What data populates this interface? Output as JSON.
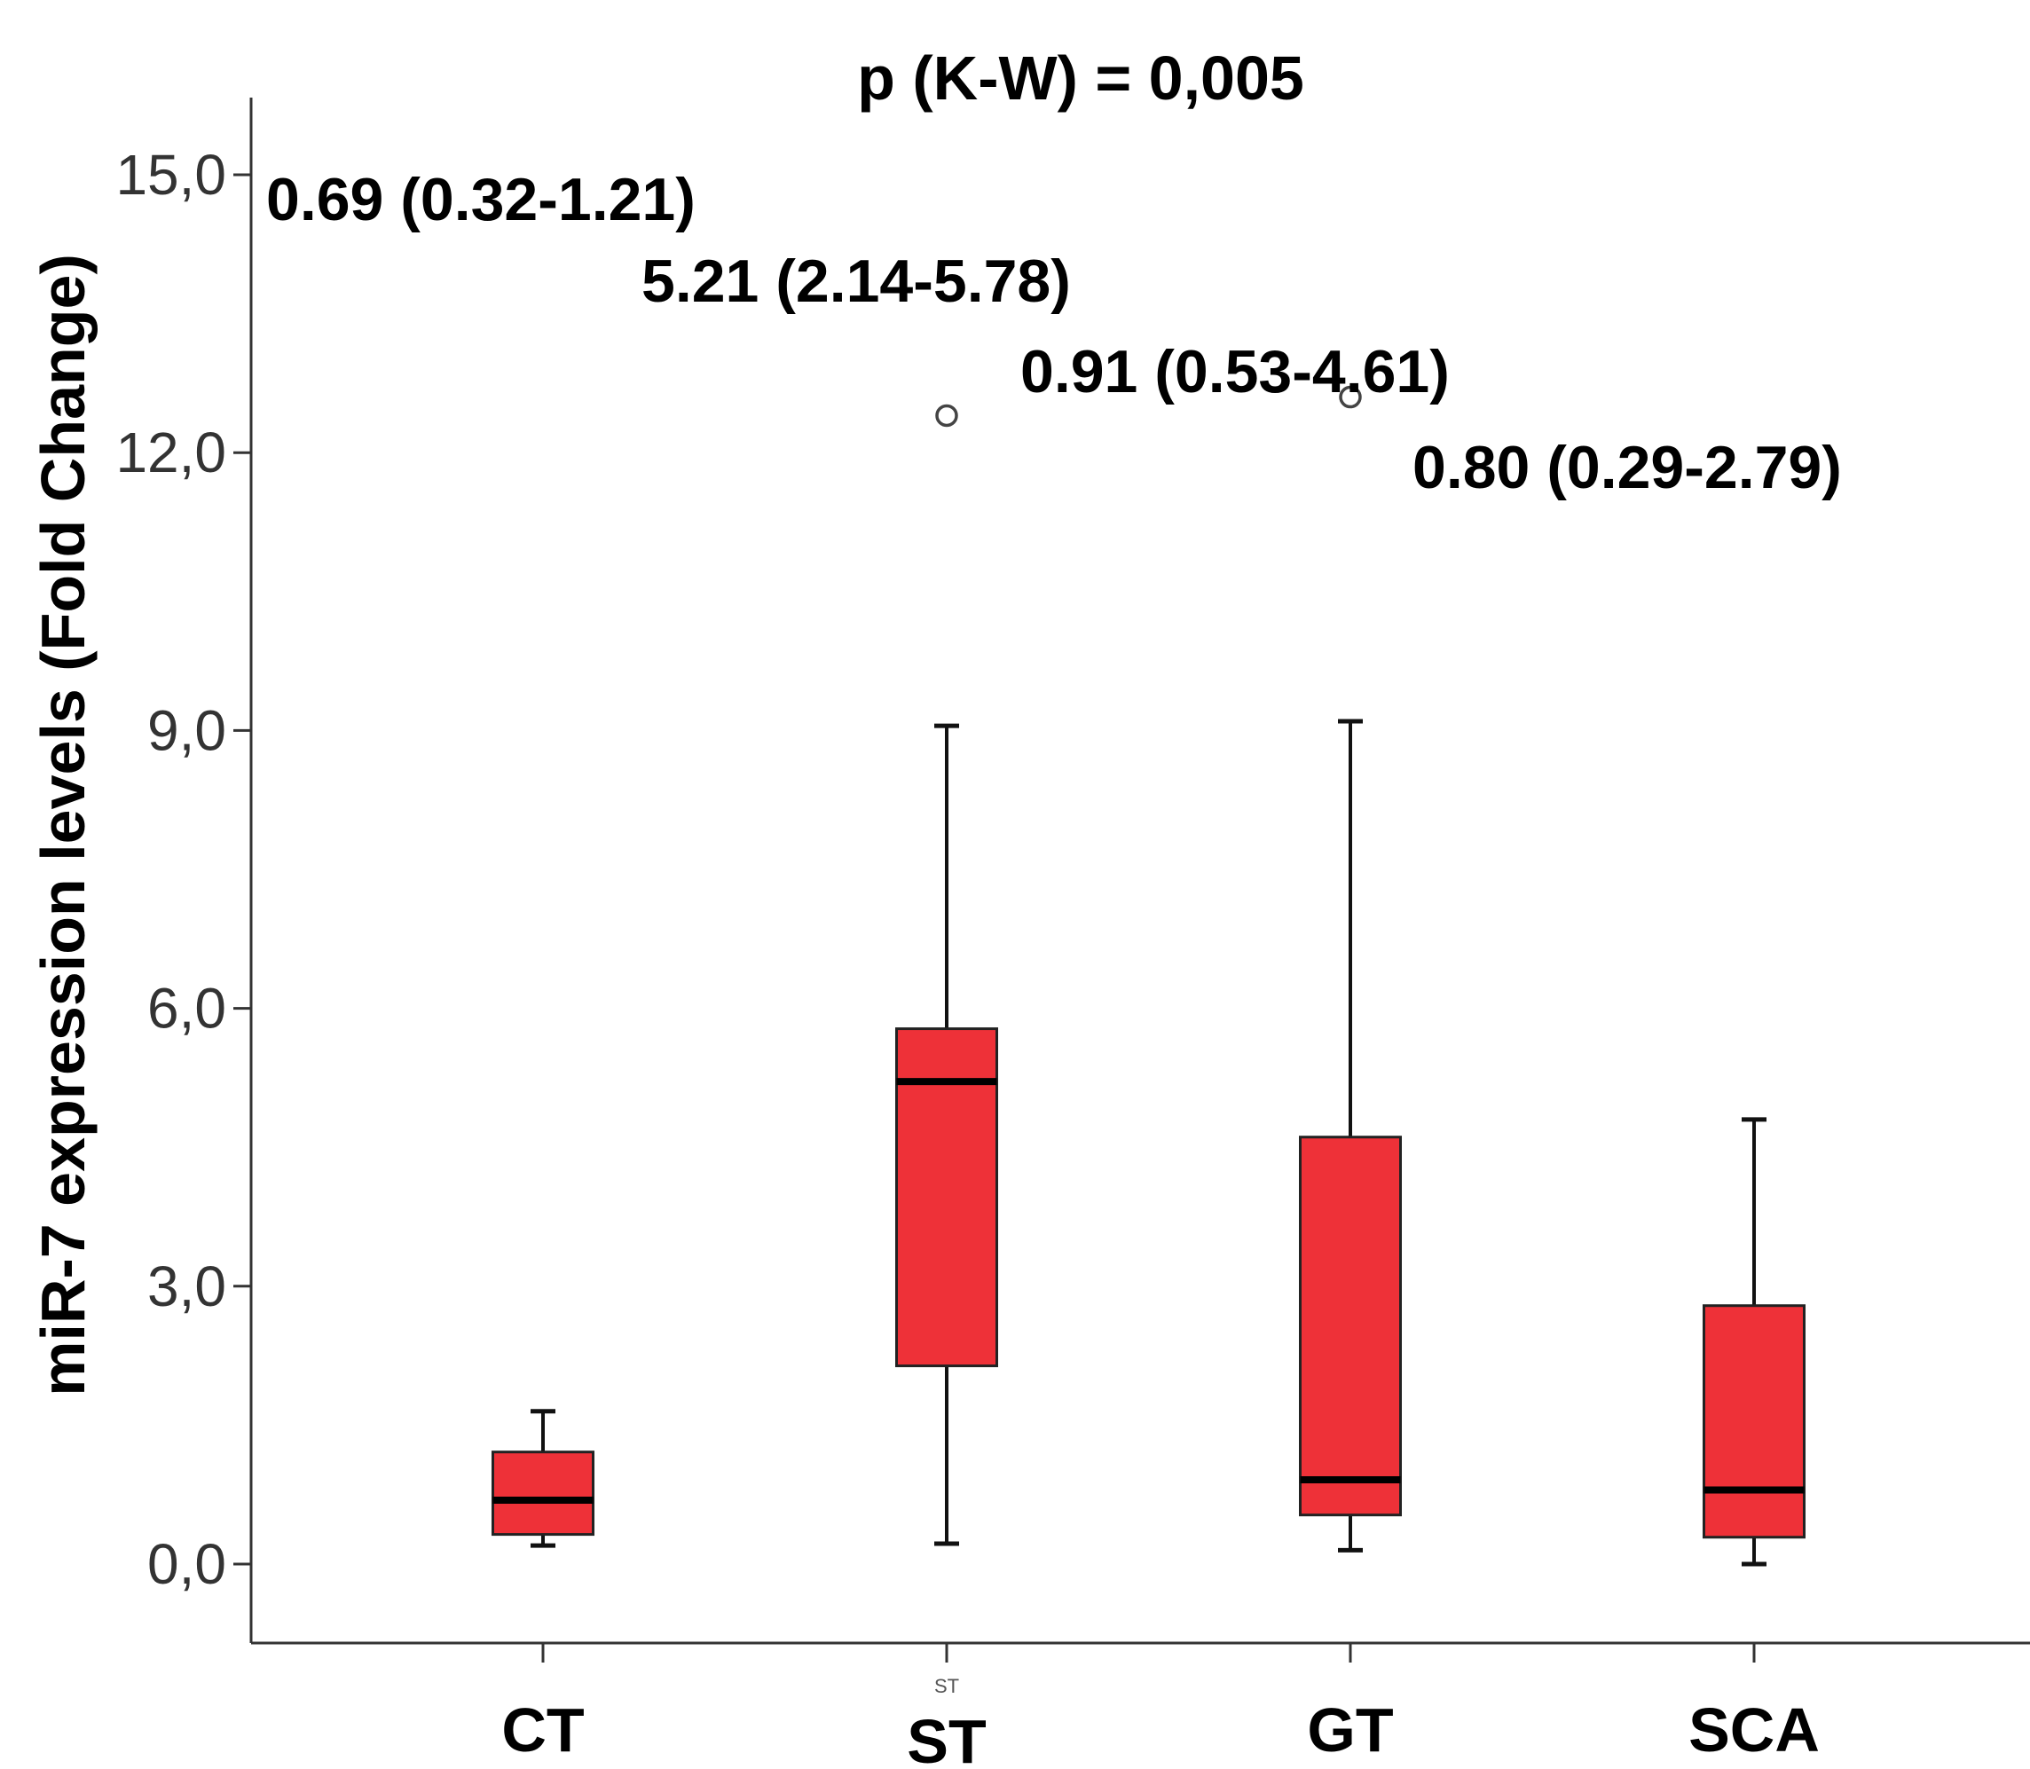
{
  "chart_data": {
    "type": "box",
    "title": "p (K-W) = 0,005",
    "ylabel": "miR-7 expression levels (Fold Change)",
    "xlabel": "",
    "ylim": [
      -0.85,
      16.7
    ],
    "yticks": [
      0,
      3,
      6,
      9,
      12,
      15
    ],
    "ytick_labels": [
      "0,0",
      "3,0",
      "6,0",
      "9,0",
      "12,0",
      "15,0"
    ],
    "box_color": "#ee3138",
    "categories": [
      "CT",
      "ST",
      "GT",
      "SCA"
    ],
    "boxes": [
      {
        "category": "CT",
        "whisker_low": 0.2,
        "q1": 0.32,
        "median": 0.69,
        "q3": 1.21,
        "whisker_high": 1.65,
        "outliers": [],
        "annotation": "0.69 (0.32-1.21)"
      },
      {
        "category": "ST",
        "whisker_low": 0.22,
        "q1": 2.14,
        "median": 5.21,
        "q3": 5.78,
        "whisker_high": 9.05,
        "outliers": [
          12.4
        ],
        "annotation": "5.21 (2.14-5.78)"
      },
      {
        "category": "GT",
        "whisker_low": 0.15,
        "q1": 0.53,
        "median": 0.91,
        "q3": 4.61,
        "whisker_high": 9.1,
        "outliers": [
          12.6
        ],
        "annotation": "0.91 (0.53-4.61)"
      },
      {
        "category": "SCA",
        "whisker_low": 0.0,
        "q1": 0.29,
        "median": 0.8,
        "q3": 2.79,
        "whisker_high": 4.8,
        "outliers": [],
        "annotation": "0.80 (0.29-2.79)"
      }
    ],
    "faint_text": "ST"
  }
}
